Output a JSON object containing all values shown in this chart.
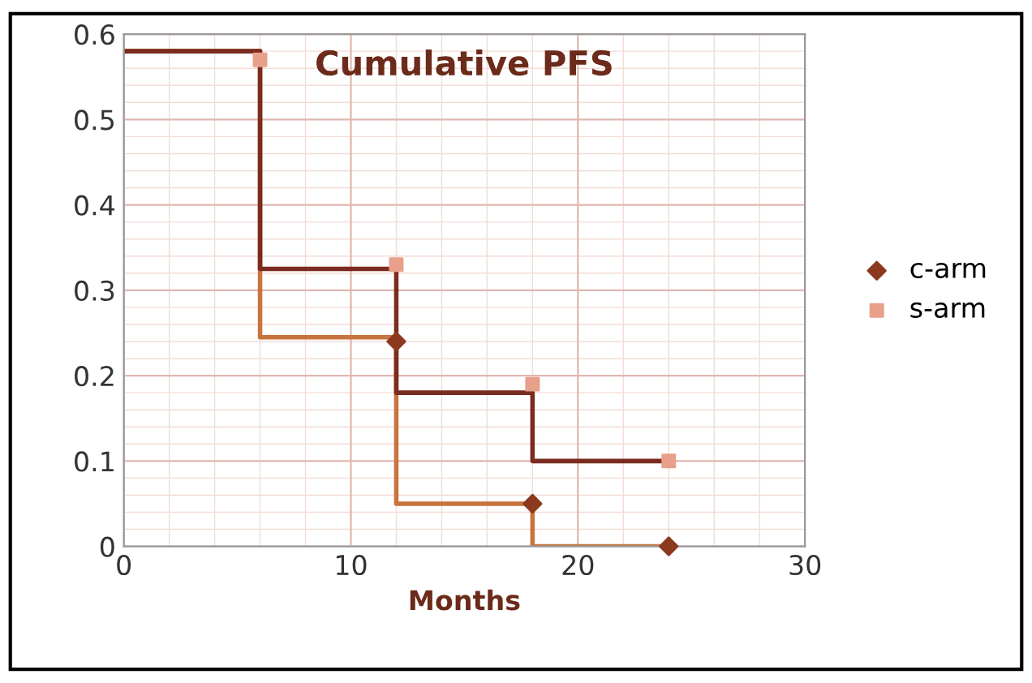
{
  "chart_data": {
    "type": "step",
    "title": "Cumulative PFS",
    "xlabel": "Months",
    "series": [
      {
        "color": "#c8743e",
        "x": [
          0,
          6,
          12,
          18,
          24
        ],
        "values": [
          0.58,
          0.245,
          0.05,
          0,
          0
        ]
      },
      {
        "color": "#7a2c1e",
        "x": [
          0,
          6,
          12,
          18,
          24
        ],
        "values": [
          0.58,
          0.325,
          0.18,
          0.1,
          0.1
        ]
      },
      {
        "type": "scatter",
        "name": "c-arm",
        "color": "#8b3a1e",
        "marker": "diamond",
        "x": [
          12,
          18,
          24
        ],
        "values": [
          0.24,
          0.05,
          0
        ]
      },
      {
        "type": "scatter",
        "name": "s-arm",
        "color": "#e8a08a",
        "marker": "square",
        "x": [
          6,
          12,
          18,
          24
        ],
        "values": [
          0.57,
          0.33,
          0.19,
          0.1
        ]
      }
    ],
    "xlim": [
      0,
      30
    ],
    "xticks": [
      0,
      10,
      20,
      30
    ],
    "ylim": [
      0,
      0.6
    ],
    "yticks": [
      0,
      0.1,
      0.2,
      0.3,
      0.4,
      0.5,
      0.6
    ],
    "grid": true,
    "legend": "right"
  }
}
